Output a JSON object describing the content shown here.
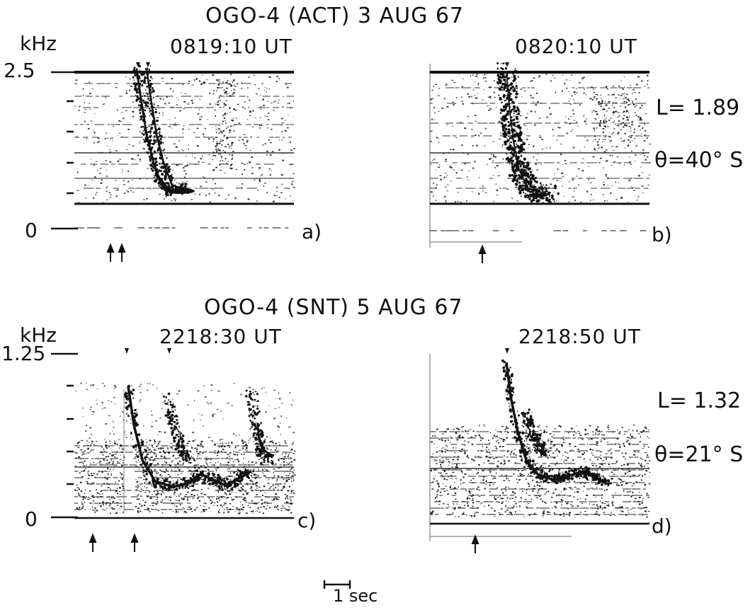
{
  "top_group": {
    "title": "OGO-4  (ACT) 3 AUG 67",
    "unit_label": "kHz",
    "y_max_label": "2.5",
    "y_zero_label": "0",
    "L_label": "L= 1.89",
    "theta_label": "θ=40° S",
    "panels": [
      {
        "time_label": "0819:10 UT",
        "letter": "a)"
      },
      {
        "time_label": "0820:10 UT",
        "letter": "b)"
      }
    ]
  },
  "bottom_group": {
    "title": "OGO-4  (SNT) 5 AUG 67",
    "unit_label": "kHz",
    "y_max_label": "1.25",
    "y_zero_label": "0",
    "L_label": "L= 1.32",
    "theta_label": "θ=21° S",
    "panels": [
      {
        "time_label": "2218:30 UT",
        "letter": "c)"
      },
      {
        "time_label": "2218:50 UT",
        "letter": "d)"
      }
    ]
  },
  "time_scale": {
    "label": "1 sec"
  },
  "colors": {
    "ink": "#111111",
    "speckle": "#333333",
    "background": "#ffffff"
  }
}
